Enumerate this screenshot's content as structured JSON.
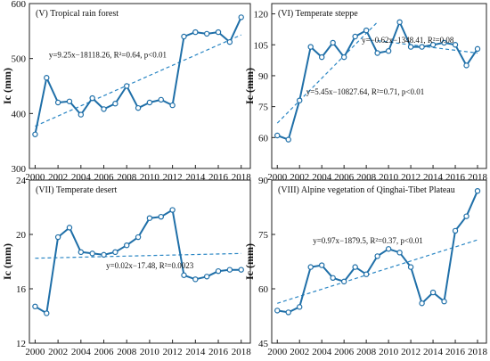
{
  "colors": {
    "series": "#1f6fa8",
    "trend": "#2a86c4",
    "frame": "#222222"
  },
  "chart_data": [
    {
      "type": "line",
      "title": "(V) Tropical rain forest",
      "ylabel": "Ic (mm)",
      "xlabel": "",
      "x": [
        2000,
        2001,
        2002,
        2003,
        2004,
        2005,
        2006,
        2007,
        2008,
        2009,
        2010,
        2011,
        2012,
        2013,
        2014,
        2015,
        2016,
        2017,
        2018
      ],
      "values": [
        362,
        465,
        420,
        422,
        398,
        428,
        408,
        418,
        450,
        410,
        420,
        425,
        415,
        540,
        548,
        545,
        548,
        530,
        575
      ],
      "xlim": [
        1999.5,
        2018.8
      ],
      "ylim": [
        300,
        600
      ],
      "yticks": [
        300,
        400,
        500,
        600
      ],
      "xticks": [
        2000,
        2002,
        2004,
        2006,
        2008,
        2010,
        2012,
        2014,
        2016,
        2018
      ],
      "trendlines": [
        {
          "x": [
            2000,
            2018
          ],
          "y": [
            377,
            543
          ],
          "equation": "y=9.25x−18118.26, R²=0.64, p<0.01"
        }
      ]
    },
    {
      "type": "line",
      "title": "(VI) Temperate steppe",
      "ylabel": "Ic (mm)",
      "xlabel": "",
      "x": [
        2000,
        2001,
        2002,
        2003,
        2004,
        2005,
        2006,
        2007,
        2008,
        2009,
        2010,
        2011,
        2012,
        2013,
        2014,
        2015,
        2016,
        2017,
        2018
      ],
      "values": [
        61,
        59,
        78,
        104,
        99,
        106,
        99,
        109,
        112,
        101,
        102,
        116,
        104,
        104,
        105,
        106,
        105,
        95,
        103
      ],
      "xlim": [
        1999.5,
        2018.8
      ],
      "ylim": [
        45,
        125
      ],
      "yticks": [
        60,
        75,
        90,
        105,
        120
      ],
      "xticks": [
        2000,
        2002,
        2004,
        2006,
        2008,
        2010,
        2012,
        2014,
        2016,
        2018
      ],
      "trendlines": [
        {
          "x": [
            2000,
            2009
          ],
          "y": [
            67,
            116
          ],
          "equation": "y=5.45x−10827.64, R²=0.71, p<0.01"
        },
        {
          "x": [
            2009,
            2018
          ],
          "y": [
            107,
            101
          ],
          "equation": "y=−0.62x−1348.41, R²=0.08"
        }
      ]
    },
    {
      "type": "line",
      "title": "(VII) Temperate desert",
      "ylabel": "Ic (mm)",
      "xlabel": "",
      "x": [
        2000,
        2001,
        2002,
        2003,
        2004,
        2005,
        2006,
        2007,
        2008,
        2009,
        2010,
        2011,
        2012,
        2013,
        2014,
        2015,
        2016,
        2017,
        2018
      ],
      "values": [
        14.7,
        14.2,
        19.8,
        20.5,
        18.7,
        18.6,
        18.5,
        18.7,
        19.2,
        19.8,
        21.2,
        21.3,
        21.8,
        17.0,
        16.7,
        16.9,
        17.3,
        17.4,
        17.4
      ],
      "xlim": [
        1999.5,
        2018.8
      ],
      "ylim": [
        12,
        24
      ],
      "yticks": [
        12,
        16,
        20,
        24
      ],
      "xticks": [
        2000,
        2002,
        2004,
        2006,
        2008,
        2010,
        2012,
        2014,
        2016,
        2018
      ],
      "trendlines": [
        {
          "x": [
            2000,
            2018
          ],
          "y": [
            18.25,
            18.6
          ],
          "equation": "y=0.02x−17.48, R²=0.0023"
        }
      ]
    },
    {
      "type": "line",
      "title": "(VIII) Alpine vegetation of Qinghai-Tibet Plateau",
      "ylabel": "Ic (mm)",
      "xlabel": "",
      "x": [
        2000,
        2001,
        2002,
        2003,
        2004,
        2005,
        2006,
        2007,
        2008,
        2009,
        2010,
        2011,
        2012,
        2013,
        2014,
        2015,
        2016,
        2017,
        2018
      ],
      "values": [
        54,
        53.5,
        55,
        66,
        66.5,
        63,
        62,
        66,
        64,
        69,
        71,
        70,
        66,
        56,
        59,
        56.5,
        76,
        80,
        87
      ],
      "xlim": [
        1999.5,
        2018.8
      ],
      "ylim": [
        45,
        90
      ],
      "yticks": [
        45,
        60,
        75,
        90
      ],
      "xticks": [
        2000,
        2002,
        2004,
        2006,
        2008,
        2010,
        2012,
        2014,
        2016,
        2018
      ],
      "trendlines": [
        {
          "x": [
            2000,
            2018
          ],
          "y": [
            56,
            73.5
          ],
          "equation": "y=0.97x−1879.5, R²=0.37, p<0.01"
        }
      ]
    }
  ]
}
